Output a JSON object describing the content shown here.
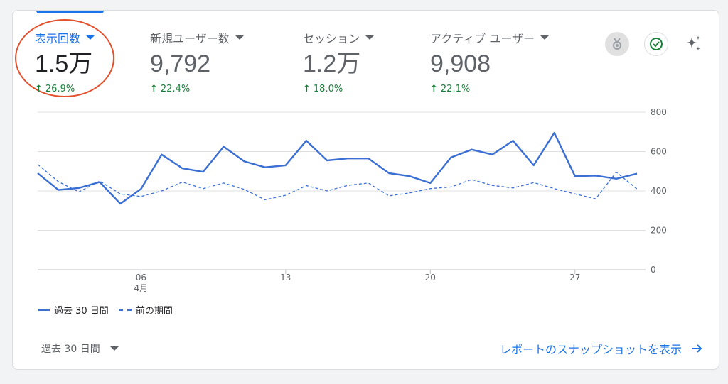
{
  "metrics": [
    {
      "label": "表示回数",
      "value": "1.5万",
      "delta": "26.9%",
      "active": true
    },
    {
      "label": "新規ユーザー数",
      "value": "9,792",
      "delta": "22.4%",
      "active": false
    },
    {
      "label": "セッション",
      "value": "1.2万",
      "delta": "18.0%",
      "active": false
    },
    {
      "label": "アクティブ ユーザー",
      "value": "9,908",
      "delta": "22.1%",
      "active": false
    }
  ],
  "icons": {
    "medal": "medal-icon",
    "check": "check-circle-icon",
    "sparkle": "sparkle-icon",
    "arrow": "arrow-right-icon"
  },
  "legend": {
    "current": "過去 30 日間",
    "previous": "前の期間"
  },
  "footer": {
    "date_range": "過去 30 日間",
    "snapshot_link": "レポートのスナップショットを表示"
  },
  "colors": {
    "accent": "#1a73e8",
    "line": "#3b6fd4",
    "positive": "#188038",
    "annotation": "#e2502d"
  },
  "chart_data": {
    "type": "line",
    "ylim": [
      0,
      800
    ],
    "yticks": [
      "800",
      "600",
      "400",
      "200",
      "0"
    ],
    "x_ticks": [
      {
        "index": 5,
        "label": "06",
        "sublabel": "4月"
      },
      {
        "index": 12,
        "label": "13",
        "sublabel": ""
      },
      {
        "index": 19,
        "label": "20",
        "sublabel": ""
      },
      {
        "index": 26,
        "label": "27",
        "sublabel": ""
      }
    ],
    "series": [
      {
        "name": "過去 30 日間",
        "style": "solid",
        "values": [
          490,
          405,
          415,
          445,
          335,
          410,
          585,
          515,
          497,
          625,
          550,
          520,
          530,
          655,
          555,
          565,
          565,
          490,
          475,
          440,
          570,
          610,
          585,
          655,
          530,
          695,
          475,
          478,
          462,
          488
        ]
      },
      {
        "name": "前の期間",
        "style": "dashed",
        "values": [
          535,
          447,
          395,
          450,
          385,
          372,
          400,
          445,
          412,
          440,
          408,
          355,
          378,
          427,
          400,
          428,
          440,
          375,
          390,
          412,
          420,
          458,
          428,
          415,
          442,
          412,
          385,
          360,
          495,
          410
        ]
      }
    ]
  }
}
